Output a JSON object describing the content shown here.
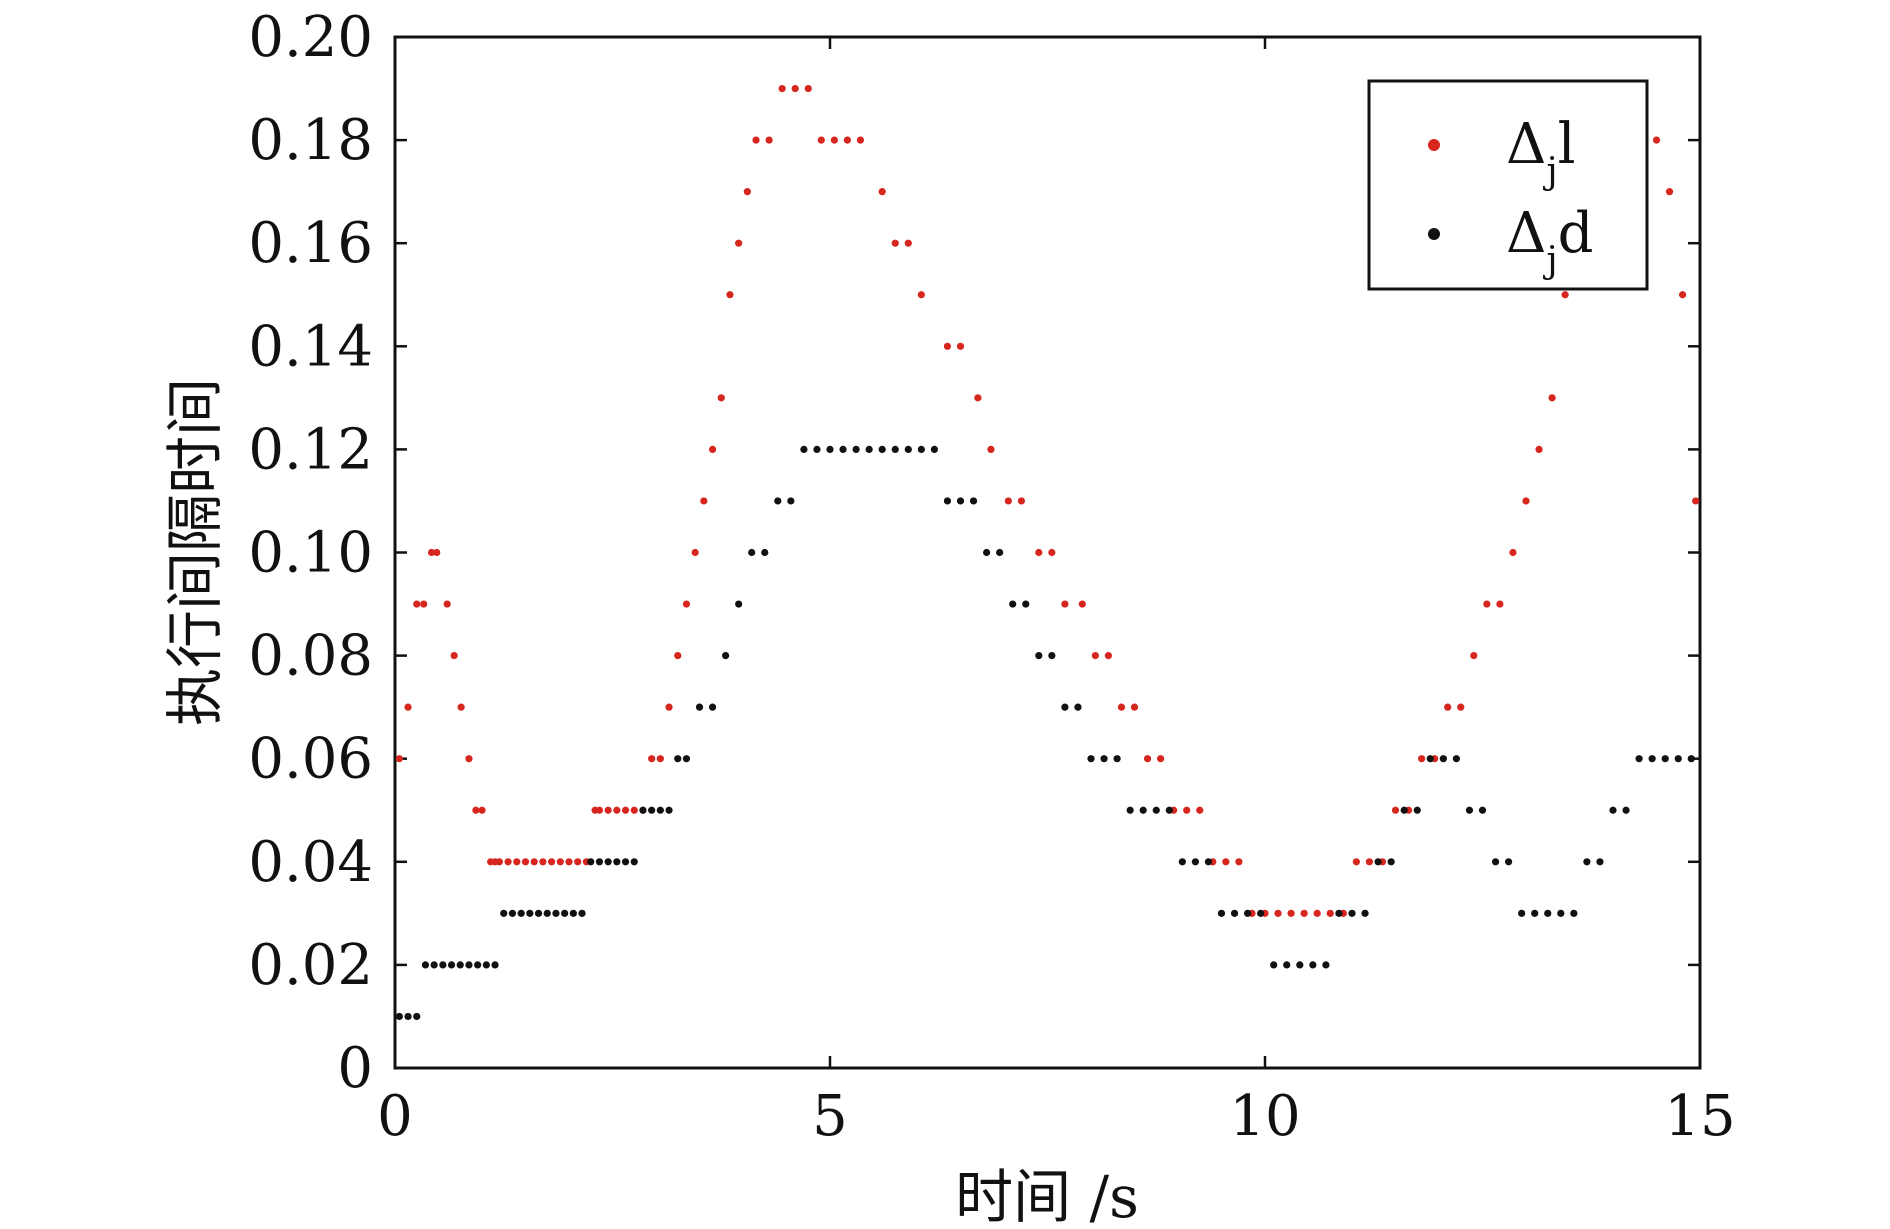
{
  "chart_data": {
    "type": "scatter",
    "title": "",
    "xlabel": "时间 /s",
    "ylabel": "执行间隔时间",
    "xlim": [
      0,
      15
    ],
    "ylim": [
      0,
      0.2
    ],
    "xticks": [
      0,
      5,
      10,
      15
    ],
    "xtick_labels": [
      "0",
      "5",
      "10",
      "15"
    ],
    "yticks": [
      0,
      0.02,
      0.04,
      0.06,
      0.08,
      0.1,
      0.12,
      0.14,
      0.16,
      0.18,
      0.2
    ],
    "ytick_labels": [
      "0",
      "0.02",
      "0.04",
      "0.06",
      "0.08",
      "0.10",
      "0.12",
      "0.14",
      "0.16",
      "0.18",
      "0.20"
    ],
    "grid": false,
    "legend_position": "top-right",
    "series": [
      {
        "name": "Δ",
        "name_sub": "j",
        "name_suffix": "l",
        "color": "#d7261e",
        "x": [
          0.05,
          0.15,
          0.25,
          0.33,
          0.42,
          0.48,
          0.6,
          0.68,
          0.76,
          0.85,
          0.93,
          1.0,
          1.1,
          1.15,
          1.2,
          1.3,
          1.4,
          1.5,
          1.6,
          1.7,
          1.8,
          1.9,
          2.0,
          2.1,
          2.2,
          2.3,
          2.35,
          2.45,
          2.55,
          2.65,
          2.75,
          2.85,
          2.95,
          3.05,
          3.15,
          3.25,
          3.35,
          3.45,
          3.55,
          3.65,
          3.75,
          3.85,
          3.95,
          4.05,
          4.15,
          4.3,
          4.45,
          4.6,
          4.75,
          4.9,
          5.05,
          5.2,
          5.35,
          5.6,
          5.75,
          5.9,
          6.05,
          6.35,
          6.5,
          6.7,
          6.85,
          7.05,
          7.2,
          7.4,
          7.55,
          7.7,
          7.9,
          8.05,
          8.2,
          8.35,
          8.5,
          8.65,
          8.8,
          8.95,
          9.1,
          9.25,
          9.4,
          9.55,
          9.7,
          9.85,
          10.0,
          10.15,
          10.3,
          10.45,
          10.6,
          10.75,
          10.9,
          11.05,
          11.2,
          11.35,
          11.5,
          11.65,
          11.8,
          11.95,
          12.1,
          12.25,
          12.4,
          12.55,
          12.7,
          12.85,
          13.0,
          13.15,
          13.3,
          13.45,
          13.6,
          13.75,
          13.9,
          14.05,
          14.2,
          14.35,
          14.5,
          14.65,
          14.8,
          14.95
        ],
        "y": [
          0.06,
          0.07,
          0.09,
          0.09,
          0.1,
          0.1,
          0.09,
          0.08,
          0.07,
          0.06,
          0.05,
          0.05,
          0.04,
          0.04,
          0.04,
          0.04,
          0.04,
          0.04,
          0.04,
          0.04,
          0.04,
          0.04,
          0.04,
          0.04,
          0.04,
          0.05,
          0.05,
          0.05,
          0.05,
          0.05,
          0.05,
          0.05,
          0.06,
          0.06,
          0.07,
          0.08,
          0.09,
          0.1,
          0.11,
          0.12,
          0.13,
          0.15,
          0.16,
          0.17,
          0.18,
          0.18,
          0.19,
          0.19,
          0.19,
          0.18,
          0.18,
          0.18,
          0.18,
          0.17,
          0.16,
          0.16,
          0.15,
          0.14,
          0.14,
          0.13,
          0.12,
          0.11,
          0.11,
          0.1,
          0.1,
          0.09,
          0.09,
          0.08,
          0.08,
          0.07,
          0.07,
          0.06,
          0.06,
          0.05,
          0.05,
          0.05,
          0.04,
          0.04,
          0.04,
          0.03,
          0.03,
          0.03,
          0.03,
          0.03,
          0.03,
          0.03,
          0.03,
          0.04,
          0.04,
          0.04,
          0.05,
          0.05,
          0.06,
          0.06,
          0.07,
          0.07,
          0.08,
          0.09,
          0.09,
          0.1,
          0.11,
          0.12,
          0.13,
          0.15,
          0.16,
          0.17,
          0.18,
          0.18,
          0.19,
          0.19,
          0.18,
          0.17,
          0.15,
          0.11
        ]
      },
      {
        "name": "Δ",
        "name_sub": "j",
        "name_suffix": "d",
        "color": "#111111",
        "x": [
          0.05,
          0.15,
          0.25,
          0.35,
          0.45,
          0.55,
          0.65,
          0.75,
          0.85,
          0.95,
          1.05,
          1.15,
          1.25,
          1.35,
          1.45,
          1.55,
          1.65,
          1.75,
          1.85,
          1.95,
          2.05,
          2.15,
          2.25,
          2.35,
          2.45,
          2.55,
          2.65,
          2.75,
          2.85,
          2.95,
          3.05,
          3.15,
          3.25,
          3.35,
          3.5,
          3.65,
          3.8,
          3.95,
          4.1,
          4.25,
          4.4,
          4.55,
          4.7,
          4.85,
          5.0,
          5.15,
          5.3,
          5.45,
          5.6,
          5.75,
          5.9,
          6.05,
          6.2,
          6.35,
          6.5,
          6.65,
          6.8,
          6.95,
          7.1,
          7.25,
          7.4,
          7.55,
          7.7,
          7.85,
          8.0,
          8.15,
          8.3,
          8.45,
          8.6,
          8.75,
          8.9,
          9.05,
          9.2,
          9.35,
          9.5,
          9.65,
          9.8,
          9.95,
          10.1,
          10.25,
          10.4,
          10.55,
          10.7,
          10.85,
          11.0,
          11.15,
          11.3,
          11.45,
          11.6,
          11.75,
          11.9,
          12.05,
          12.2,
          12.35,
          12.5,
          12.65,
          12.8,
          12.95,
          13.1,
          13.25,
          13.4,
          13.55,
          13.7,
          13.85,
          14.0,
          14.15,
          14.3,
          14.45,
          14.6,
          14.75,
          14.9
        ],
        "y": [
          0.01,
          0.01,
          0.01,
          0.02,
          0.02,
          0.02,
          0.02,
          0.02,
          0.02,
          0.02,
          0.02,
          0.02,
          0.03,
          0.03,
          0.03,
          0.03,
          0.03,
          0.03,
          0.03,
          0.03,
          0.03,
          0.03,
          0.04,
          0.04,
          0.04,
          0.04,
          0.04,
          0.04,
          0.05,
          0.05,
          0.05,
          0.05,
          0.06,
          0.06,
          0.07,
          0.07,
          0.08,
          0.09,
          0.1,
          0.1,
          0.11,
          0.11,
          0.12,
          0.12,
          0.12,
          0.12,
          0.12,
          0.12,
          0.12,
          0.12,
          0.12,
          0.12,
          0.12,
          0.11,
          0.11,
          0.11,
          0.1,
          0.1,
          0.09,
          0.09,
          0.08,
          0.08,
          0.07,
          0.07,
          0.06,
          0.06,
          0.06,
          0.05,
          0.05,
          0.05,
          0.05,
          0.04,
          0.04,
          0.04,
          0.03,
          0.03,
          0.03,
          0.03,
          0.02,
          0.02,
          0.02,
          0.02,
          0.02,
          0.03,
          0.03,
          0.03,
          0.04,
          0.04,
          0.05,
          0.05,
          0.06,
          0.06,
          0.06,
          0.05,
          0.05,
          0.04,
          0.04,
          0.03,
          0.03,
          0.03,
          0.03,
          0.03,
          0.04,
          0.04,
          0.05,
          0.05,
          0.06,
          0.06,
          0.06,
          0.06,
          0.06
        ]
      }
    ]
  }
}
